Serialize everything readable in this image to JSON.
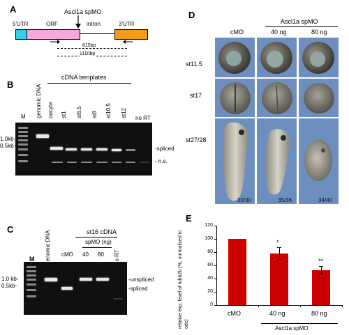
{
  "panels": {
    "A": "A",
    "B": "B",
    "C": "C",
    "D": "D",
    "E": "E"
  },
  "panelA": {
    "utr5": "5'UTR",
    "orf": "ORF",
    "intron": "intron",
    "utr3": "3'UTR",
    "mo": "Ascl1a spMO",
    "bp615": "615bp",
    "bp1110": "1110bp",
    "colors": {
      "utr5": "#33d0e8",
      "orf": "#f7a8d8",
      "utr3": "#f59a1a"
    }
  },
  "panelB": {
    "header": "cDNA templates",
    "lanes": [
      "M",
      "genomic DNA",
      "oocyte",
      "st1",
      "st6.5",
      "st8",
      "st10.5",
      "st12",
      "no RT"
    ],
    "size_labels": [
      "1.0kb-",
      "0.5kb-"
    ],
    "band_labels": [
      "-spliced",
      "- n.s."
    ]
  },
  "panelC": {
    "header": "st16 cDNA",
    "subheader": "spMO (ng)",
    "lanes": [
      "M",
      "genomic DNA",
      "cMO",
      "40",
      "80",
      "no RT"
    ],
    "size_labels": [
      "1.0 kb-",
      "0.5kb-"
    ],
    "band_labels": [
      "-unspliced",
      "-spliced"
    ]
  },
  "panelD": {
    "cols": [
      "cMO",
      "40 ng",
      "80 ng"
    ],
    "group_label": "Ascl1a spMO",
    "rows": [
      "st11.5",
      "st17",
      "st27/28"
    ],
    "counts": [
      "30/30",
      "35/36",
      "34/40"
    ]
  },
  "panelE": {
    "chart_data": {
      "type": "bar",
      "categories": [
        "cMO",
        "40 ng",
        "80 ng"
      ],
      "values": [
        100,
        78,
        53
      ],
      "errors": [
        0,
        9,
        6
      ],
      "significance": [
        "",
        "*",
        "**"
      ],
      "ylabel": "relative exp. level of tubb2b (%, normalized to odc)",
      "group_label": "Ascl1a spMO",
      "ylim": [
        0,
        120
      ],
      "yticks": [
        "0",
        "20",
        "40",
        "60",
        "80",
        "100",
        "120"
      ],
      "bar_color": "#cc0000"
    }
  }
}
